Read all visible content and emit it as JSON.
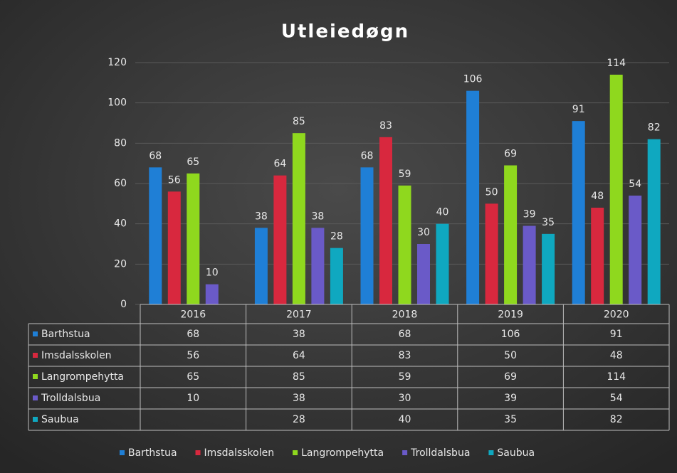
{
  "chart_data": {
    "type": "bar",
    "title": "Utleiedøgn",
    "categories": [
      "2016",
      "2017",
      "2018",
      "2019",
      "2020"
    ],
    "series": [
      {
        "name": "Barthstua",
        "color": "#1f7fd6",
        "values": [
          68,
          38,
          68,
          106,
          91
        ]
      },
      {
        "name": "Imsdalsskolen",
        "color": "#d8283e",
        "values": [
          56,
          64,
          83,
          50,
          48
        ]
      },
      {
        "name": "Langrompehytta",
        "color": "#8fd81e",
        "values": [
          65,
          85,
          59,
          69,
          114
        ]
      },
      {
        "name": "Trolldalsbua",
        "color": "#6a5ac8",
        "values": [
          10,
          38,
          30,
          39,
          54
        ]
      },
      {
        "name": "Saubua",
        "color": "#0fa8c0",
        "values": [
          null,
          28,
          40,
          35,
          82
        ]
      }
    ],
    "ylim": [
      0,
      120
    ],
    "yticks": [
      0,
      20,
      40,
      60,
      80,
      100,
      120
    ],
    "grid": true,
    "legend": "bottom"
  }
}
